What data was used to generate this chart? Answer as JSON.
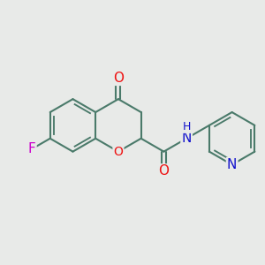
{
  "background_color": "#e8eae8",
  "bond_color": "#4a7a6a",
  "bond_width": 1.5,
  "atom_colors": {
    "O": "#ee1111",
    "N": "#1111cc",
    "F": "#cc00cc",
    "C": "#000000"
  },
  "font_size_atom": 10,
  "fig_size": [
    3.0,
    3.0
  ],
  "dpi": 100,
  "bl": 0.55
}
